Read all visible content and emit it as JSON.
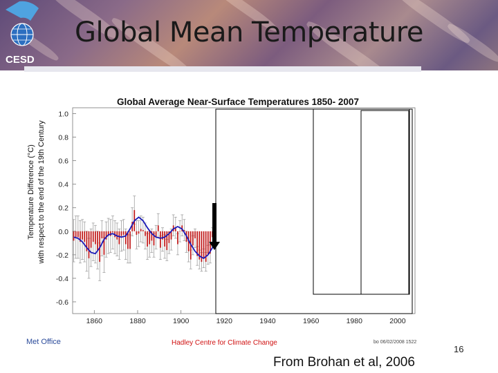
{
  "slide": {
    "title": "Global Mean Temperature",
    "logo_text": "CESD",
    "page_number": "16",
    "citation": "From Brohan et al, 2006",
    "footer_left": "Met Office",
    "footer_center": "Hadley Centre for Climate Change",
    "footer_stamp": "bo 06/02/2008 1522"
  },
  "chart_data": {
    "type": "bar",
    "title": "Global Average Near-Surface Temperatures 1850- 2007",
    "ylabel_line1": "Temperature Difference (°C)",
    "ylabel_line2": "with respect to the end of the 19th Century",
    "xlim": [
      1850,
      2008
    ],
    "ylim": [
      -0.7,
      1.05
    ],
    "yticks": [
      1.0,
      0.8,
      0.6,
      0.4,
      0.2,
      0.0,
      -0.2,
      -0.4,
      -0.6
    ],
    "ytick_labels": [
      "1.0",
      "0.8",
      "0.6",
      "0.4",
      "0.2",
      "0.0",
      "-0.2",
      "-0.4",
      "-0.6"
    ],
    "xticks": [
      1860,
      1880,
      1900,
      1920,
      1940,
      1960,
      1980,
      2000
    ],
    "xtick_labels": [
      "1860",
      "1880",
      "1900",
      "1920",
      "1940",
      "1960",
      "1980",
      "2000"
    ],
    "colors": {
      "bar": "#c01818",
      "error": "#a0a0a0",
      "smooth": "#1a1ab8",
      "box": "#000000"
    },
    "series": [
      {
        "x": [
          1850,
          1851,
          1852,
          1853,
          1854,
          1855,
          1856,
          1857,
          1858,
          1859,
          1860,
          1861,
          1862,
          1863,
          1864,
          1865,
          1866,
          1867,
          1868,
          1869,
          1870,
          1871,
          1872,
          1873,
          1874,
          1875,
          1876,
          1877,
          1878,
          1879,
          1880,
          1881,
          1882,
          1883,
          1884,
          1885,
          1886,
          1887,
          1888,
          1889,
          1890,
          1891,
          1892,
          1893,
          1894,
          1895,
          1896,
          1897,
          1898,
          1899,
          1900,
          1901,
          1902,
          1903,
          1904,
          1905,
          1906,
          1907,
          1908,
          1909,
          1910,
          1911,
          1912,
          1913,
          1914,
          1915,
          1916
        ],
        "values": [
          -0.08,
          -0.05,
          -0.05,
          -0.09,
          -0.07,
          -0.09,
          -0.17,
          -0.23,
          -0.14,
          -0.09,
          -0.11,
          -0.16,
          -0.26,
          -0.06,
          -0.2,
          -0.07,
          -0.04,
          -0.04,
          -0.01,
          -0.05,
          -0.07,
          -0.11,
          -0.04,
          -0.03,
          -0.11,
          -0.15,
          -0.15,
          0.08,
          0.18,
          -0.03,
          -0.02,
          0.02,
          0.01,
          -0.04,
          -0.13,
          -0.11,
          -0.08,
          -0.12,
          -0.05,
          0.05,
          -0.14,
          -0.07,
          -0.13,
          -0.16,
          -0.1,
          -0.07,
          0.05,
          0.03,
          -0.11,
          0.0,
          0.05,
          0.01,
          -0.09,
          -0.17,
          -0.24,
          -0.12,
          -0.06,
          -0.21,
          -0.24,
          -0.26,
          -0.23,
          -0.26,
          -0.2,
          -0.19,
          -0.05,
          -0.04,
          -0.17
        ],
        "errors": [
          0.18,
          0.18,
          0.18,
          0.18,
          0.17,
          0.17,
          0.17,
          0.17,
          0.16,
          0.16,
          0.16,
          0.16,
          0.16,
          0.15,
          0.15,
          0.15,
          0.15,
          0.14,
          0.14,
          0.14,
          0.14,
          0.13,
          0.13,
          0.13,
          0.13,
          0.12,
          0.12,
          0.12,
          0.12,
          0.12,
          0.11,
          0.11,
          0.11,
          0.11,
          0.11,
          0.11,
          0.1,
          0.1,
          0.1,
          0.1,
          0.1,
          0.1,
          0.1,
          0.09,
          0.09,
          0.09,
          0.09,
          0.09,
          0.09,
          0.09,
          0.09,
          0.09,
          0.09,
          0.09,
          0.08,
          0.08,
          0.08,
          0.08,
          0.08,
          0.08,
          0.08,
          0.08,
          0.08,
          0.08,
          0.08,
          0.08,
          0.08
        ]
      }
    ],
    "smooth": {
      "x": [
        1850,
        1852,
        1854,
        1856,
        1858,
        1860,
        1862,
        1864,
        1866,
        1868,
        1870,
        1872,
        1874,
        1876,
        1878,
        1880,
        1882,
        1884,
        1886,
        1888,
        1890,
        1892,
        1894,
        1896,
        1898,
        1900,
        1902,
        1904,
        1906,
        1908,
        1910,
        1912,
        1914,
        1916
      ],
      "values": [
        -0.05,
        -0.06,
        -0.09,
        -0.14,
        -0.18,
        -0.19,
        -0.14,
        -0.07,
        -0.03,
        -0.02,
        -0.04,
        -0.05,
        -0.04,
        0.02,
        0.09,
        0.12,
        0.09,
        0.03,
        -0.02,
        -0.05,
        -0.06,
        -0.05,
        -0.02,
        0.02,
        0.04,
        0.02,
        -0.04,
        -0.11,
        -0.17,
        -0.21,
        -0.23,
        -0.2,
        -0.14,
        -0.12
      ]
    },
    "annotation": "downward arrow at about 1916 pointing to the series end, followed by nested unfilled boxes covering 1920-2007"
  }
}
